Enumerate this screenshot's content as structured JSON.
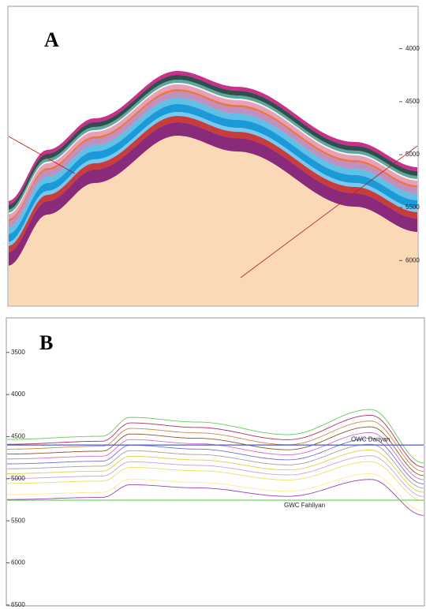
{
  "panels": [
    {
      "label": "A",
      "ylim": [
        3600,
        6430
      ],
      "yticks": [
        4000,
        4500,
        5000,
        5500,
        6000
      ]
    },
    {
      "label": "B",
      "ylim": [
        3090,
        6510
      ],
      "yticks": [
        3500,
        4000,
        4500,
        5000,
        5500,
        6000,
        6500
      ],
      "contacts": [
        {
          "label": "OWC Dariyan",
          "depth": 4600,
          "color": "#4a5ad8"
        },
        {
          "label": "GWC Fahliyan",
          "depth": 5255,
          "color": "#66cc55"
        }
      ]
    }
  ]
}
